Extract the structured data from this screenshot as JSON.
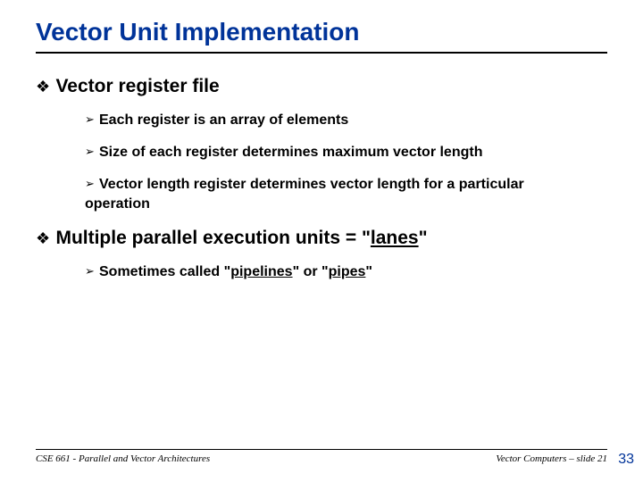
{
  "colors": {
    "title": "#003399",
    "text": "#000000",
    "rule": "#000000",
    "page_number": "#003399",
    "background": "#ffffff"
  },
  "typography": {
    "title_fontsize": 28,
    "level1_fontsize": 21,
    "level2_fontsize": 16,
    "footer_fontsize": 11,
    "page_number_fontsize": 16,
    "body_font": "Arial",
    "footer_font": "Times New Roman italic"
  },
  "bullets": {
    "level1_glyph": "❖",
    "level2_glyph": "➢"
  },
  "title": "Vector Unit Implementation",
  "items": [
    {
      "level": 1,
      "text": "Vector register file"
    },
    {
      "level": 2,
      "text": "Each register is an array of elements"
    },
    {
      "level": 2,
      "text": "Size of each register determines maximum vector length"
    },
    {
      "level": 2,
      "text": "Vector length register determines vector length for a particular operation"
    },
    {
      "level": 1,
      "pre": "Multiple parallel execution units = \"",
      "underlined": "lanes",
      "post": "\""
    },
    {
      "level": 2,
      "pre": "Sometimes called \"",
      "u1": "pipelines",
      "mid": "\" or \"",
      "u2": "pipes",
      "post": "\""
    }
  ],
  "footer": {
    "left": "CSE 661 - Parallel and Vector Architectures",
    "right": "Vector Computers – slide 21"
  },
  "page_number": "33"
}
